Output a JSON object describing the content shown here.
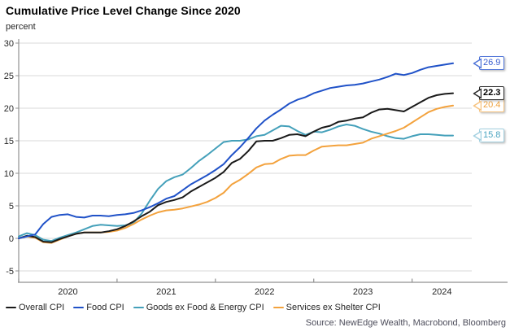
{
  "title": "Cumulative Price Level Change Since 2020",
  "y_axis_label": "percent",
  "source": "Source: NewEdge Wealth, Macrobond, Bloomberg",
  "colors": {
    "grid": "#d9d9d9",
    "axis": "#919191",
    "tick_text": "#262626",
    "title_text": "#000000",
    "source_text": "#4c4c5a"
  },
  "chart_data": {
    "type": "line",
    "title": "Cumulative Price Level Change Since 2020",
    "xlabel": "",
    "ylabel": "percent",
    "ylim": [
      -5,
      30
    ],
    "y_ticks": [
      30,
      25,
      20,
      15,
      10,
      5,
      0,
      -5
    ],
    "x_tick_years": [
      "2020",
      "2021",
      "2022",
      "2023",
      "2024"
    ],
    "grid": "horizontal",
    "legend_position": "bottom",
    "x": [
      "2020-01",
      "2020-02",
      "2020-03",
      "2020-04",
      "2020-05",
      "2020-06",
      "2020-07",
      "2020-08",
      "2020-09",
      "2020-10",
      "2020-11",
      "2020-12",
      "2021-01",
      "2021-02",
      "2021-03",
      "2021-04",
      "2021-05",
      "2021-06",
      "2021-07",
      "2021-08",
      "2021-09",
      "2021-10",
      "2021-11",
      "2021-12",
      "2022-01",
      "2022-02",
      "2022-03",
      "2022-04",
      "2022-05",
      "2022-06",
      "2022-07",
      "2022-08",
      "2022-09",
      "2022-10",
      "2022-11",
      "2022-12",
      "2023-01",
      "2023-02",
      "2023-03",
      "2023-04",
      "2023-05",
      "2023-06",
      "2023-07",
      "2023-08",
      "2023-09",
      "2023-10",
      "2023-11",
      "2023-12",
      "2024-01",
      "2024-02",
      "2024-03",
      "2024-04",
      "2024-05",
      "2024-06"
    ],
    "series": [
      {
        "name": "Overall CPI",
        "color": "#1a1a1a",
        "end_label": "22.3",
        "label_border": "#2b2b2b",
        "label_text": "#000000",
        "label_bold": true,
        "values": [
          0.0,
          0.4,
          0.2,
          -0.5,
          -0.6,
          -0.1,
          0.3,
          0.7,
          0.9,
          0.9,
          0.9,
          1.1,
          1.4,
          1.9,
          2.6,
          3.4,
          4.1,
          5.1,
          5.6,
          5.9,
          6.3,
          7.2,
          7.9,
          8.6,
          9.3,
          10.2,
          11.6,
          12.2,
          13.4,
          14.9,
          15.0,
          15.0,
          15.4,
          15.9,
          16.0,
          15.7,
          16.4,
          17.0,
          17.3,
          17.9,
          18.1,
          18.4,
          18.6,
          19.3,
          19.8,
          19.9,
          19.7,
          19.5,
          20.2,
          20.9,
          21.6,
          22.0,
          22.2,
          22.3
        ]
      },
      {
        "name": "Food CPI",
        "color": "#2052c8",
        "end_label": "26.9",
        "label_border": "#4f74d8",
        "label_text": "#3a5ecf",
        "label_bold": false,
        "values": [
          0.0,
          0.3,
          0.6,
          2.2,
          3.3,
          3.6,
          3.7,
          3.3,
          3.2,
          3.5,
          3.5,
          3.4,
          3.6,
          3.7,
          3.9,
          4.3,
          4.8,
          5.4,
          6.1,
          6.5,
          7.4,
          8.3,
          9.0,
          9.7,
          10.5,
          11.4,
          12.8,
          14.0,
          15.4,
          16.9,
          18.1,
          19.0,
          19.8,
          20.7,
          21.3,
          21.7,
          22.3,
          22.7,
          23.1,
          23.3,
          23.5,
          23.6,
          23.8,
          24.1,
          24.4,
          24.8,
          25.3,
          25.1,
          25.4,
          25.9,
          26.3,
          26.5,
          26.7,
          26.9
        ]
      },
      {
        "name": "Goods ex Food & Energy CPI",
        "color": "#44a0ba",
        "end_label": "15.8",
        "label_border": "#a3d0e0",
        "label_text": "#4ba4c0",
        "label_bold": false,
        "values": [
          0.3,
          0.8,
          0.5,
          -0.2,
          -0.4,
          0.1,
          0.5,
          0.9,
          1.4,
          1.9,
          2.1,
          2.0,
          1.9,
          2.0,
          2.4,
          3.8,
          5.8,
          7.6,
          8.8,
          9.4,
          9.8,
          10.8,
          11.9,
          12.8,
          13.8,
          14.8,
          15.0,
          15.0,
          15.2,
          15.7,
          15.9,
          16.6,
          17.3,
          17.2,
          16.5,
          15.9,
          16.4,
          16.3,
          16.7,
          17.2,
          17.5,
          17.3,
          16.8,
          16.4,
          16.1,
          15.7,
          15.4,
          15.3,
          15.7,
          16.0,
          16.0,
          15.9,
          15.8,
          15.8
        ]
      },
      {
        "name": "Services ex Shelter CPI",
        "color": "#f3a23d",
        "end_label": "20.4",
        "label_border": "#f6c380",
        "label_text": "#f0a23c",
        "label_bold": false,
        "values": [
          0.0,
          0.3,
          0.1,
          -0.6,
          -0.7,
          -0.2,
          0.3,
          0.7,
          0.9,
          0.9,
          0.9,
          1.0,
          1.2,
          1.6,
          2.2,
          2.9,
          3.5,
          4.0,
          4.3,
          4.4,
          4.6,
          4.9,
          5.2,
          5.6,
          6.2,
          7.0,
          8.3,
          9.0,
          9.9,
          10.9,
          11.4,
          11.5,
          12.2,
          12.7,
          12.8,
          12.8,
          13.5,
          14.1,
          14.2,
          14.3,
          14.3,
          14.5,
          14.7,
          15.3,
          15.7,
          16.1,
          16.5,
          17.0,
          17.8,
          18.6,
          19.4,
          19.9,
          20.2,
          20.4
        ]
      }
    ]
  }
}
